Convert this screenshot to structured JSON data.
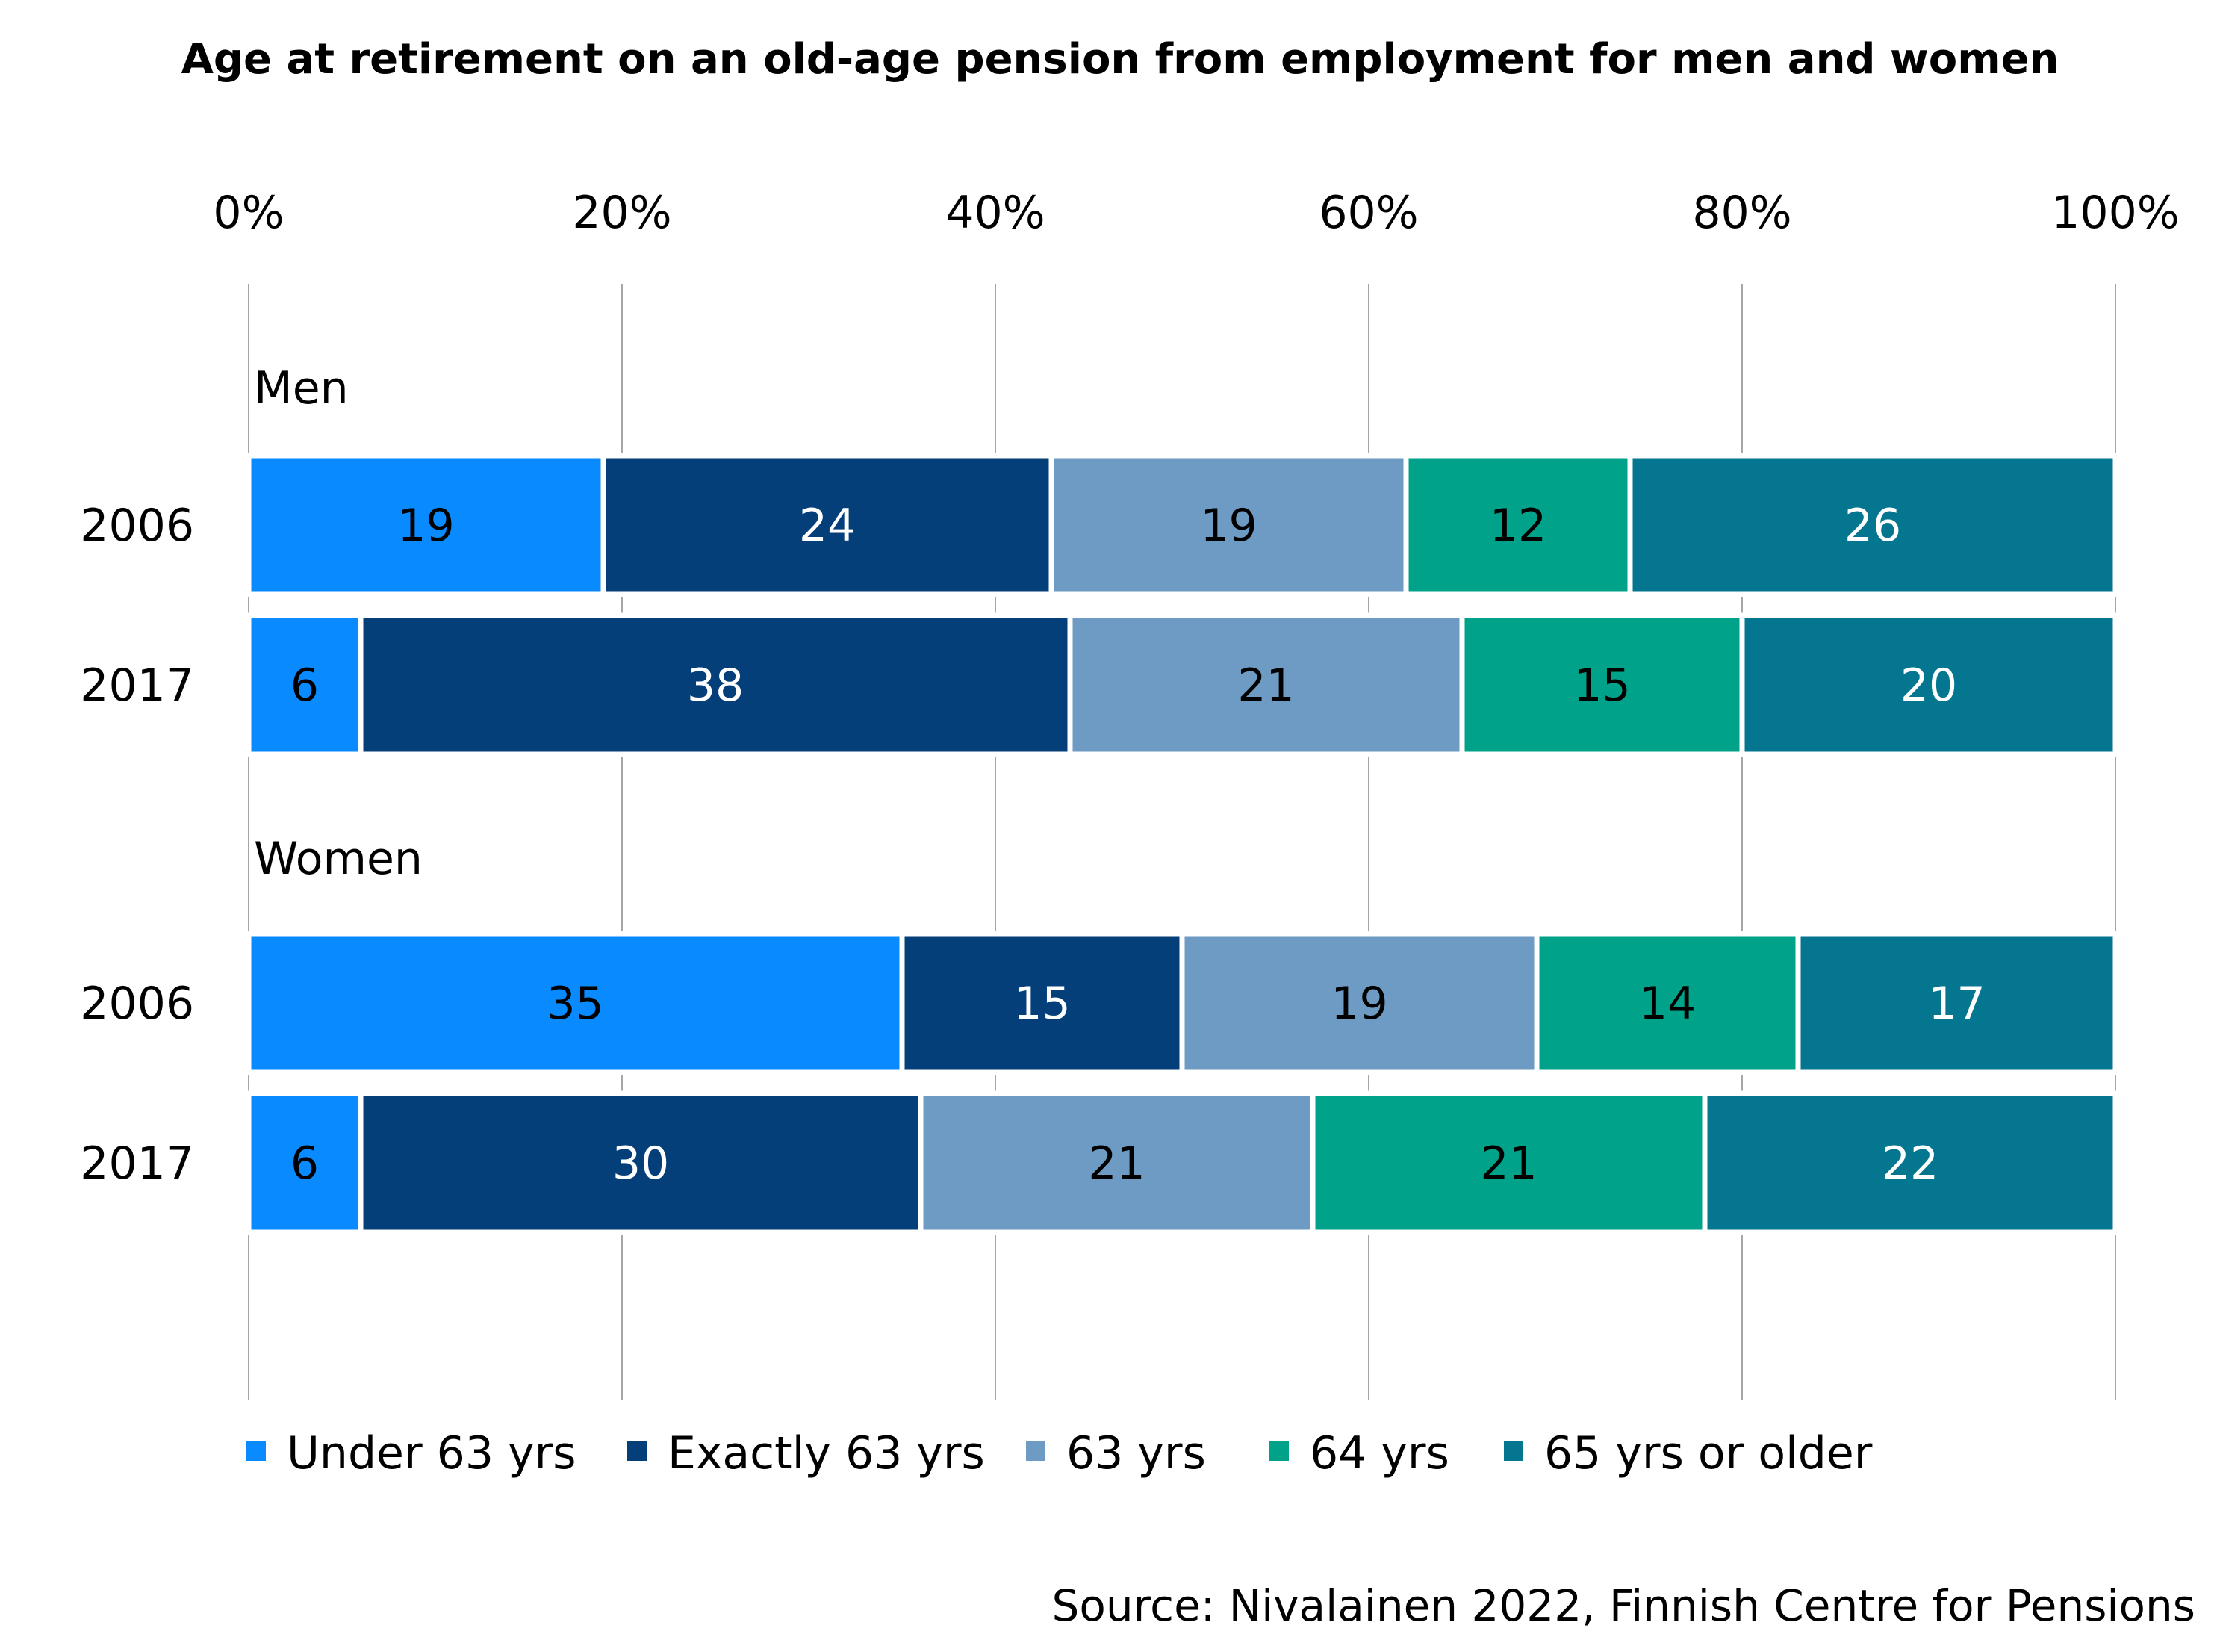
{
  "chart_data": {
    "type": "bar",
    "orientation": "horizontal",
    "stacked": "percent",
    "title": "Age at retirement on an old-age pension from employment for men and women",
    "source": "Source: Nivalainen 2022, Finnish Centre for Pensions",
    "xlim": [
      0,
      100
    ],
    "x_ticks": [
      "0%",
      "20%",
      "40%",
      "60%",
      "80%",
      "100%"
    ],
    "x_tick_values": [
      0,
      20,
      40,
      60,
      80,
      100
    ],
    "x_axis_position": "top",
    "grid": true,
    "legend_position": "bottom",
    "groups": [
      {
        "label": "Men",
        "rows": [
          {
            "label": "2006",
            "values": [
              19,
              24,
              19,
              12,
              26
            ]
          },
          {
            "label": "2017",
            "values": [
              6,
              38,
              21,
              15,
              20
            ]
          }
        ]
      },
      {
        "label": "Women",
        "rows": [
          {
            "label": "2006",
            "values": [
              35,
              15,
              19,
              14,
              17
            ]
          },
          {
            "label": "2017",
            "values": [
              6,
              30,
              21,
              21,
              22
            ]
          }
        ]
      }
    ],
    "series": [
      {
        "name": "Under 63 yrs",
        "color": "#0a8aff",
        "label_color": "#000000"
      },
      {
        "name": "Exactly 63 yrs",
        "color": "#053f7a",
        "label_color": "#ffffff"
      },
      {
        "name": "63 yrs",
        "color": "#6d9bc3",
        "label_color": "#000000"
      },
      {
        "name": "64 yrs",
        "color": "#00a389",
        "label_color": "#000000"
      },
      {
        "name": "65 yrs or older",
        "color": "#047690",
        "label_color": "#ffffff"
      }
    ]
  }
}
